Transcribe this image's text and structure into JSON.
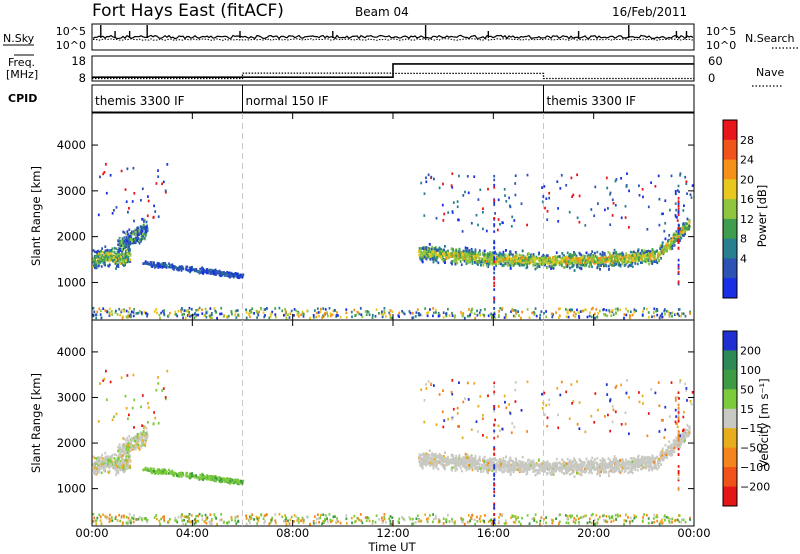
{
  "header": {
    "radar_title": "Fort Hays East (fitACF)",
    "beam": "Beam 04",
    "date": "16/Feb/2011"
  },
  "chart_data": [
    {
      "type": "line",
      "panel": "noise",
      "left_label": "N.Sky",
      "right_label": "N.Search",
      "left_ticks": [
        "10^5",
        "10^0"
      ],
      "right_ticks": [
        "10^5",
        "10^0"
      ],
      "series": [
        {
          "name": "N.Sky",
          "style": "solid"
        },
        {
          "name": "N.Search",
          "style": "dotted"
        }
      ]
    },
    {
      "type": "line",
      "panel": "frequency",
      "left_label_line1": "Freq.",
      "left_label_line2": "[MHz]",
      "right_label": "Nave",
      "left_ticks": [
        "18",
        "8"
      ],
      "right_ticks": [
        "60",
        "0"
      ],
      "x_hours": [
        0,
        6,
        6,
        12,
        12,
        24
      ],
      "freq_mhz": [
        10,
        10,
        10,
        10,
        17,
        17
      ],
      "nave_x_hours": [
        0,
        6,
        6,
        12,
        12,
        18,
        18,
        24
      ],
      "nave": [
        8,
        8,
        25,
        25,
        24,
        24,
        8,
        8
      ]
    },
    {
      "type": "table",
      "panel": "cpid",
      "label": "CPID",
      "segments": [
        {
          "start_hour": 0,
          "text": "themis 3300 IF"
        },
        {
          "start_hour": 6,
          "text": "normal 150 IF"
        },
        {
          "start_hour": 18,
          "text": "themis 3300 IF"
        }
      ]
    },
    {
      "type": "heatmap",
      "panel": "power",
      "ylabel": "Slant Range [km]",
      "y_ticks": [
        1000,
        2000,
        3000,
        4000
      ],
      "ylim": [
        180,
        4700
      ],
      "colorbar_title": "Power [dB]",
      "colorbar_ticks": [
        "28",
        "24",
        "20",
        "16",
        "12",
        "8",
        "4"
      ],
      "colorbar_colors": [
        "#e8151a",
        "#f0541a",
        "#f59018",
        "#e8c81e",
        "#8fc63e",
        "#3e9e4e",
        "#28808f",
        "#2c52b3",
        "#1a2ee6"
      ]
    },
    {
      "type": "heatmap",
      "panel": "velocity",
      "ylabel": "Slant Range [km]",
      "y_ticks": [
        1000,
        2000,
        3000,
        4000
      ],
      "ylim": [
        180,
        4700
      ],
      "colorbar_title": "Velocity [m s⁻¹]",
      "colorbar_ticks": [
        "200",
        "100",
        "50",
        "15",
        "−15",
        "−50",
        "−100",
        "−200"
      ],
      "colorbar_colors": [
        "#1f2fd1",
        "#2d8a56",
        "#3c9b43",
        "#7ccb3c",
        "#c9c9c3",
        "#e8ad1c",
        "#f4851c",
        "#f1521a",
        "#e41616"
      ]
    }
  ],
  "xaxis": {
    "ticks": [
      "00:00",
      "04:00",
      "08:00",
      "12:00",
      "16:00",
      "20:00",
      "00:00"
    ],
    "xlabel": "Time UT",
    "xlim_hours": [
      0,
      24
    ]
  }
}
